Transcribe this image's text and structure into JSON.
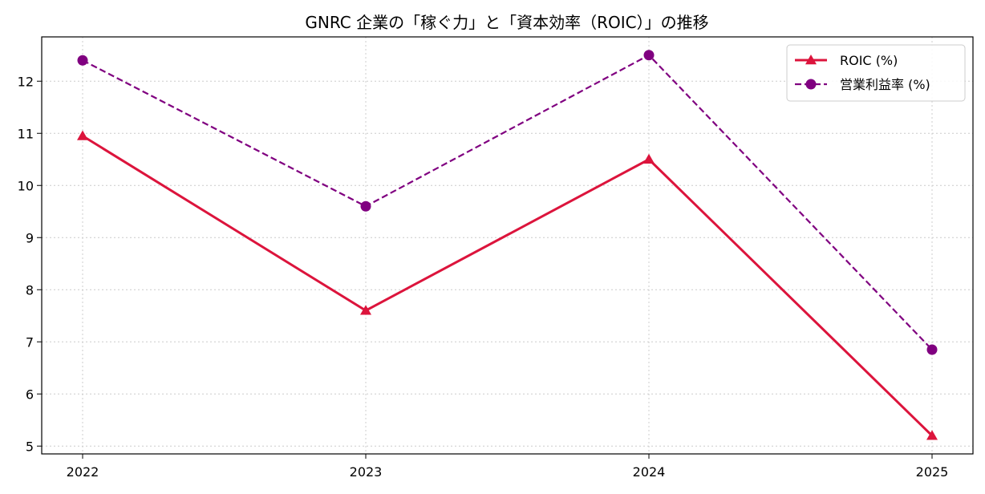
{
  "chart_data": {
    "type": "line",
    "title": "GNRC 企業の「稼ぐ力」と「資本効率（ROIC）」の推移",
    "xlabel": "",
    "ylabel": "",
    "x": [
      "2022",
      "2023",
      "2024",
      "2025"
    ],
    "ylim": [
      4.85,
      12.85
    ],
    "yticks": [
      5,
      6,
      7,
      8,
      9,
      10,
      11,
      12
    ],
    "grid": true,
    "legend_position": "top-right",
    "series": [
      {
        "name": "ROIC (%)",
        "values": [
          10.95,
          7.6,
          10.5,
          5.2
        ],
        "color": "#dc143c",
        "line_style": "solid",
        "marker": "triangle"
      },
      {
        "name": "営業利益率 (%)",
        "values": [
          12.4,
          9.6,
          12.5,
          6.85
        ],
        "color": "#800080",
        "line_style": "dashed",
        "marker": "circle"
      }
    ]
  }
}
